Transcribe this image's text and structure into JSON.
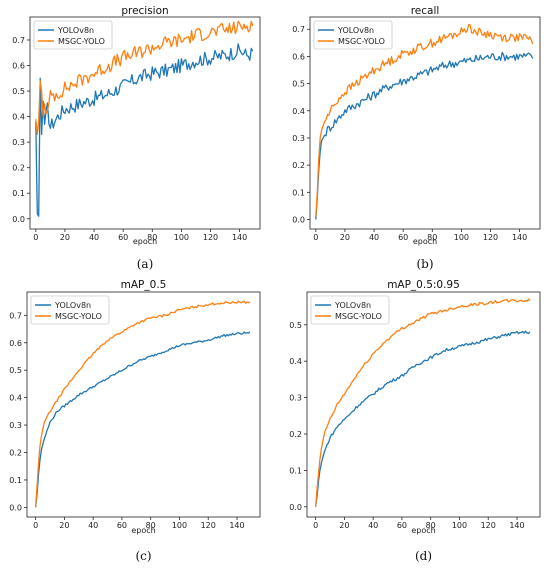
{
  "chart_data": [
    {
      "type": "line",
      "title": "precision",
      "xlabel": "epoch",
      "ylabel": "",
      "caption": "(a)",
      "xlim": [
        -4,
        154
      ],
      "ylim": [
        -0.04,
        0.79
      ],
      "xticks": [
        0,
        20,
        40,
        60,
        80,
        100,
        120,
        140
      ],
      "yticks": [
        0.0,
        0.1,
        0.2,
        0.3,
        0.4,
        0.5,
        0.6,
        0.7
      ],
      "legend": "top-left",
      "noise": 0.028,
      "series": [
        {
          "name": "YOLOv8n",
          "color": "#1f77b4",
          "points": [
            [
              0,
              0.38
            ],
            [
              1,
              0.02
            ],
            [
              2,
              0.01
            ],
            [
              3,
              0.55
            ],
            [
              4,
              0.33
            ],
            [
              5,
              0.46
            ],
            [
              6,
              0.37
            ],
            [
              8,
              0.43
            ],
            [
              10,
              0.36
            ],
            [
              15,
              0.4
            ],
            [
              20,
              0.43
            ],
            [
              30,
              0.45
            ],
            [
              40,
              0.47
            ],
            [
              50,
              0.49
            ],
            [
              60,
              0.52
            ],
            [
              70,
              0.55
            ],
            [
              80,
              0.57
            ],
            [
              90,
              0.58
            ],
            [
              100,
              0.6
            ],
            [
              110,
              0.62
            ],
            [
              120,
              0.63
            ],
            [
              130,
              0.64
            ],
            [
              140,
              0.66
            ],
            [
              145,
              0.64
            ],
            [
              149,
              0.65
            ]
          ]
        },
        {
          "name": "MSGC-YOLO",
          "color": "#ff7f0e",
          "points": [
            [
              0,
              0.39
            ],
            [
              1,
              0.33
            ],
            [
              2,
              0.38
            ],
            [
              3,
              0.54
            ],
            [
              4,
              0.5
            ],
            [
              5,
              0.4
            ],
            [
              6,
              0.45
            ],
            [
              8,
              0.41
            ],
            [
              10,
              0.48
            ],
            [
              15,
              0.49
            ],
            [
              20,
              0.51
            ],
            [
              30,
              0.54
            ],
            [
              40,
              0.57
            ],
            [
              50,
              0.6
            ],
            [
              60,
              0.63
            ],
            [
              70,
              0.65
            ],
            [
              80,
              0.67
            ],
            [
              90,
              0.69
            ],
            [
              100,
              0.7
            ],
            [
              110,
              0.72
            ],
            [
              120,
              0.73
            ],
            [
              130,
              0.74
            ],
            [
              140,
              0.75
            ],
            [
              145,
              0.76
            ],
            [
              149,
              0.76
            ]
          ]
        }
      ]
    },
    {
      "type": "line",
      "title": "recall",
      "xlabel": "epoch",
      "ylabel": "",
      "caption": "(b)",
      "xlim": [
        -4,
        154
      ],
      "ylim": [
        -0.035,
        0.745
      ],
      "xticks": [
        0,
        20,
        40,
        60,
        80,
        100,
        120,
        140
      ],
      "yticks": [
        0.0,
        0.1,
        0.2,
        0.3,
        0.4,
        0.5,
        0.6,
        0.7
      ],
      "legend": "top-left",
      "noise": 0.016,
      "series": [
        {
          "name": "YOLOv8n",
          "color": "#1f77b4",
          "points": [
            [
              0,
              0.0
            ],
            [
              1,
              0.08
            ],
            [
              2,
              0.18
            ],
            [
              3,
              0.25
            ],
            [
              4,
              0.29
            ],
            [
              6,
              0.31
            ],
            [
              8,
              0.33
            ],
            [
              10,
              0.34
            ],
            [
              15,
              0.37
            ],
            [
              20,
              0.4
            ],
            [
              30,
              0.43
            ],
            [
              40,
              0.46
            ],
            [
              50,
              0.49
            ],
            [
              60,
              0.51
            ],
            [
              70,
              0.53
            ],
            [
              80,
              0.55
            ],
            [
              90,
              0.57
            ],
            [
              100,
              0.58
            ],
            [
              110,
              0.59
            ],
            [
              120,
              0.6
            ],
            [
              130,
              0.6
            ],
            [
              140,
              0.6
            ],
            [
              149,
              0.6
            ]
          ]
        },
        {
          "name": "MSGC-YOLO",
          "color": "#ff7f0e",
          "points": [
            [
              0,
              0.01
            ],
            [
              1,
              0.1
            ],
            [
              2,
              0.22
            ],
            [
              3,
              0.3
            ],
            [
              4,
              0.33
            ],
            [
              6,
              0.36
            ],
            [
              8,
              0.38
            ],
            [
              10,
              0.4
            ],
            [
              15,
              0.44
            ],
            [
              20,
              0.47
            ],
            [
              30,
              0.51
            ],
            [
              40,
              0.55
            ],
            [
              50,
              0.58
            ],
            [
              60,
              0.61
            ],
            [
              70,
              0.63
            ],
            [
              80,
              0.65
            ],
            [
              90,
              0.67
            ],
            [
              100,
              0.69
            ],
            [
              105,
              0.71
            ],
            [
              110,
              0.69
            ],
            [
              120,
              0.68
            ],
            [
              130,
              0.67
            ],
            [
              140,
              0.67
            ],
            [
              149,
              0.66
            ]
          ]
        }
      ]
    },
    {
      "type": "line",
      "title": "mAP_0.5",
      "xlabel": "epoch",
      "ylabel": "",
      "caption": "(c)",
      "xlim": [
        -6,
        156
      ],
      "ylim": [
        -0.035,
        0.785
      ],
      "xticks": [
        0,
        20,
        40,
        60,
        80,
        100,
        120,
        140
      ],
      "yticks": [
        0.0,
        0.1,
        0.2,
        0.3,
        0.4,
        0.5,
        0.6,
        0.7
      ],
      "legend": "top-left",
      "noise": 0.004,
      "series": [
        {
          "name": "YOLOv8n",
          "color": "#1f77b4",
          "points": [
            [
              0,
              0.0
            ],
            [
              1,
              0.05
            ],
            [
              2,
              0.12
            ],
            [
              3,
              0.17
            ],
            [
              4,
              0.21
            ],
            [
              6,
              0.25
            ],
            [
              8,
              0.28
            ],
            [
              10,
              0.31
            ],
            [
              15,
              0.35
            ],
            [
              20,
              0.37
            ],
            [
              30,
              0.41
            ],
            [
              40,
              0.44
            ],
            [
              50,
              0.47
            ],
            [
              60,
              0.5
            ],
            [
              70,
              0.53
            ],
            [
              80,
              0.55
            ],
            [
              90,
              0.57
            ],
            [
              100,
              0.59
            ],
            [
              110,
              0.6
            ],
            [
              120,
              0.61
            ],
            [
              130,
              0.625
            ],
            [
              140,
              0.633
            ],
            [
              149,
              0.637
            ]
          ]
        },
        {
          "name": "MSGC-YOLO",
          "color": "#ff7f0e",
          "points": [
            [
              0,
              0.0
            ],
            [
              1,
              0.08
            ],
            [
              2,
              0.16
            ],
            [
              3,
              0.22
            ],
            [
              4,
              0.26
            ],
            [
              6,
              0.31
            ],
            [
              8,
              0.33
            ],
            [
              10,
              0.35
            ],
            [
              15,
              0.39
            ],
            [
              20,
              0.43
            ],
            [
              30,
              0.5
            ],
            [
              40,
              0.56
            ],
            [
              50,
              0.61
            ],
            [
              60,
              0.64
            ],
            [
              70,
              0.67
            ],
            [
              80,
              0.69
            ],
            [
              90,
              0.7
            ],
            [
              100,
              0.72
            ],
            [
              110,
              0.73
            ],
            [
              120,
              0.74
            ],
            [
              130,
              0.745
            ],
            [
              140,
              0.748
            ],
            [
              149,
              0.748
            ]
          ]
        }
      ]
    },
    {
      "type": "line",
      "title": "mAP_0.5:0.95",
      "xlabel": "epoch",
      "ylabel": "",
      "caption": "(d)",
      "xlim": [
        -6,
        156
      ],
      "ylim": [
        -0.028,
        0.59
      ],
      "xticks": [
        0,
        20,
        40,
        60,
        80,
        100,
        120,
        140
      ],
      "yticks": [
        0.0,
        0.1,
        0.2,
        0.3,
        0.4,
        0.5
      ],
      "legend": "top-left",
      "noise": 0.004,
      "series": [
        {
          "name": "YOLOv8n",
          "color": "#1f77b4",
          "points": [
            [
              0,
              0.0
            ],
            [
              1,
              0.03
            ],
            [
              2,
              0.07
            ],
            [
              3,
              0.1
            ],
            [
              4,
              0.12
            ],
            [
              6,
              0.15
            ],
            [
              8,
              0.17
            ],
            [
              10,
              0.19
            ],
            [
              15,
              0.22
            ],
            [
              20,
              0.24
            ],
            [
              30,
              0.28
            ],
            [
              40,
              0.31
            ],
            [
              50,
              0.34
            ],
            [
              60,
              0.36
            ],
            [
              70,
              0.39
            ],
            [
              80,
              0.41
            ],
            [
              90,
              0.43
            ],
            [
              100,
              0.44
            ],
            [
              110,
              0.45
            ],
            [
              120,
              0.46
            ],
            [
              130,
              0.47
            ],
            [
              140,
              0.478
            ],
            [
              149,
              0.48
            ]
          ]
        },
        {
          "name": "MSGC-YOLO",
          "color": "#ff7f0e",
          "points": [
            [
              0,
              0.0
            ],
            [
              1,
              0.05
            ],
            [
              2,
              0.09
            ],
            [
              3,
              0.13
            ],
            [
              4,
              0.16
            ],
            [
              6,
              0.2
            ],
            [
              8,
              0.22
            ],
            [
              10,
              0.24
            ],
            [
              15,
              0.28
            ],
            [
              20,
              0.31
            ],
            [
              30,
              0.37
            ],
            [
              40,
              0.42
            ],
            [
              50,
              0.46
            ],
            [
              60,
              0.49
            ],
            [
              70,
              0.51
            ],
            [
              80,
              0.53
            ],
            [
              90,
              0.54
            ],
            [
              100,
              0.55
            ],
            [
              110,
              0.556
            ],
            [
              120,
              0.56
            ],
            [
              130,
              0.565
            ],
            [
              140,
              0.566
            ],
            [
              149,
              0.567
            ]
          ]
        }
      ]
    }
  ]
}
